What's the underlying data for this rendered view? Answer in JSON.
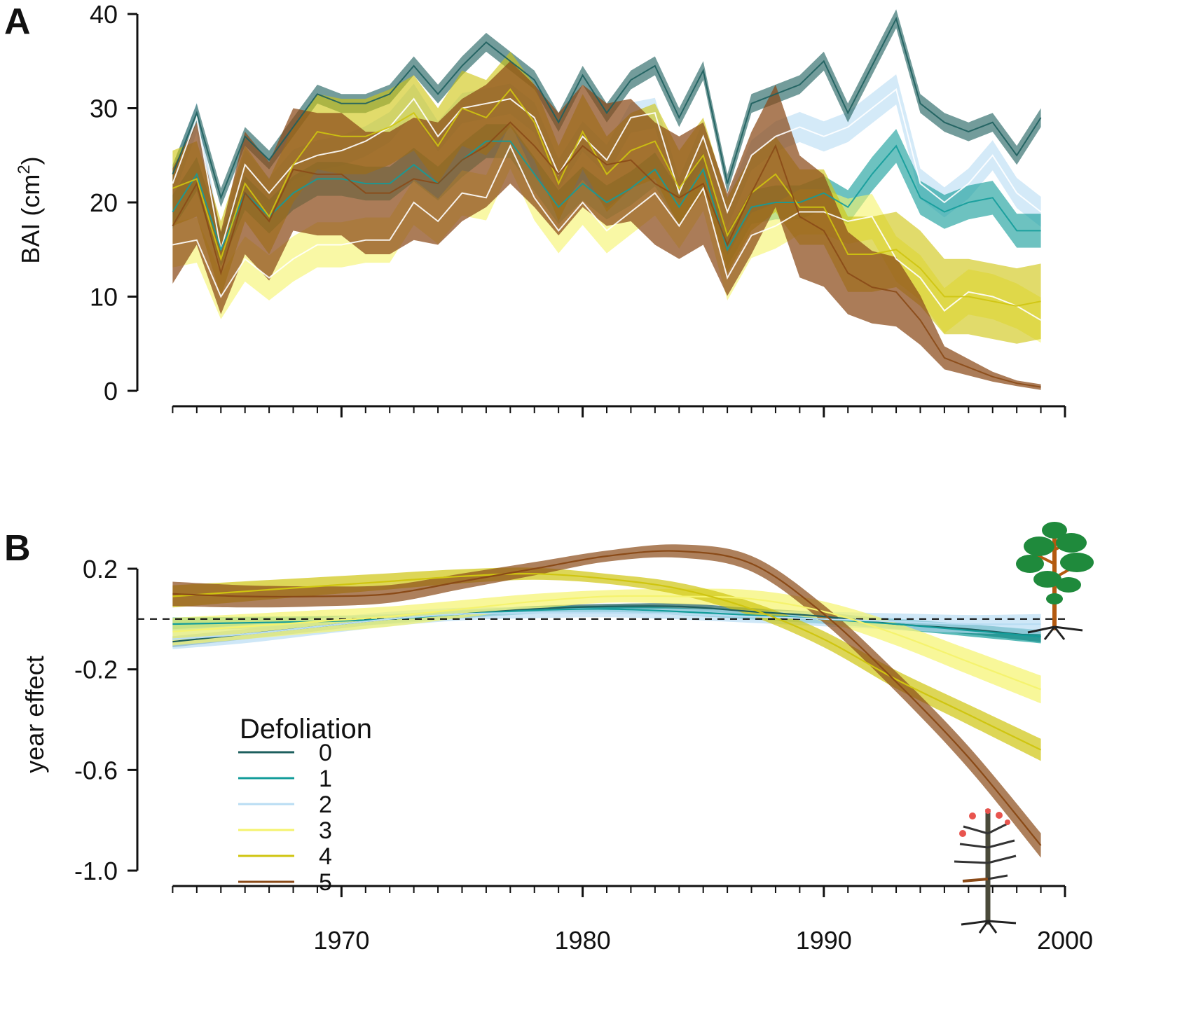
{
  "colors": {
    "0": "#1d5f5e",
    "1": "#139c9a",
    "2": "#b9ddf3",
    "3": "#f5f36e",
    "4": "#cfc510",
    "5": "#8a4a17",
    "axis": "#111111"
  },
  "chart_data": [
    {
      "id": "A",
      "type": "area",
      "panel_label": "A",
      "ylabel": "BAI (cm",
      "ylabel_sup": "2",
      "ylabel_close": ")",
      "ylim": [
        0,
        40
      ],
      "xlim": [
        1962,
        2000
      ],
      "yticks": [
        0,
        10,
        20,
        30,
        40
      ],
      "ytick_labels": [
        "0",
        "10",
        "20",
        "30",
        "40"
      ],
      "xticks_minor": [
        1963,
        1964,
        1965,
        1966,
        1967,
        1968,
        1969,
        1970,
        1971,
        1972,
        1973,
        1974,
        1975,
        1976,
        1977,
        1978,
        1979,
        1980,
        1981,
        1982,
        1983,
        1984,
        1985,
        1986,
        1987,
        1988,
        1989,
        1990,
        1991,
        1992,
        1993,
        1994,
        1995,
        1996,
        1997,
        1998,
        1999,
        2000
      ],
      "x": [
        1963,
        1964,
        1965,
        1966,
        1967,
        1968,
        1969,
        1970,
        1971,
        1972,
        1973,
        1974,
        1975,
        1976,
        1977,
        1978,
        1979,
        1980,
        1981,
        1982,
        1983,
        1984,
        1985,
        1986,
        1987,
        1988,
        1989,
        1990,
        1991,
        1992,
        1993,
        1994,
        1995,
        1996,
        1997,
        1998,
        1999
      ],
      "series": [
        {
          "name": "2",
          "values": [
            22,
            29,
            15,
            24,
            21,
            24,
            25,
            25.5,
            26.5,
            28,
            31,
            27,
            30,
            30.5,
            31,
            29,
            23,
            27,
            24.5,
            29,
            29.5,
            21,
            27,
            19,
            25,
            27,
            28,
            27,
            28,
            30,
            32,
            22,
            20,
            22,
            25,
            21,
            19
          ],
          "ci": 1.6
        },
        {
          "name": "0",
          "values": [
            23,
            29.5,
            20.5,
            27,
            24.5,
            28,
            31.5,
            30.5,
            30.5,
            31.5,
            34.5,
            31.5,
            34.5,
            37,
            35,
            33,
            28.5,
            33.5,
            29.5,
            33,
            34.5,
            29,
            34,
            22,
            30.5,
            31.5,
            32.5,
            35,
            29.5,
            34.5,
            39.5,
            30.5,
            28.5,
            27.5,
            28.5,
            25,
            29
          ],
          "ci": 1.0
        },
        {
          "name": "1",
          "values": [
            19,
            23,
            15,
            21,
            18.5,
            21,
            22.5,
            22.5,
            22,
            22,
            24,
            22,
            24.5,
            26.5,
            26.5,
            23,
            19.5,
            22,
            20,
            21.5,
            23.5,
            19.5,
            23.5,
            15,
            19.5,
            20,
            20,
            21,
            19.5,
            23,
            26,
            20.5,
            19,
            20,
            20.5,
            17,
            17
          ],
          "ci": 1.8
        },
        {
          "name": "3",
          "values": [
            15.5,
            16,
            10,
            14,
            12,
            14,
            15.5,
            15.5,
            16,
            16,
            20,
            18,
            21,
            20.5,
            26,
            20.5,
            17,
            20,
            17,
            19,
            21,
            17.5,
            21.5,
            12,
            16.5,
            17.5,
            19,
            19,
            18,
            18.5,
            14,
            12,
            8.5,
            10.5,
            10,
            9,
            7.5
          ],
          "ci": 2.4
        },
        {
          "name": "4",
          "values": [
            21.5,
            22.5,
            14,
            22,
            18.5,
            24,
            27.5,
            27,
            27,
            28,
            29.5,
            26,
            30,
            29,
            32,
            28.5,
            22,
            27.5,
            23,
            25.5,
            26.5,
            21.5,
            25,
            16.5,
            21,
            23,
            19.5,
            19.5,
            14.5,
            14.5,
            15,
            13,
            10,
            10,
            9.5,
            9,
            9.5
          ],
          "ci": 4.0
        },
        {
          "name": "5",
          "values": [
            17.5,
            22,
            12.5,
            21,
            18,
            23.5,
            23,
            23,
            21,
            21,
            22.5,
            22,
            24.5,
            26,
            28.5,
            26,
            23,
            26,
            24,
            24.5,
            22,
            20.5,
            22,
            15.5,
            21,
            26,
            18.5,
            17,
            12.5,
            11,
            10.5,
            7.5,
            3.5,
            2.5,
            1.5,
            0.8,
            0.4
          ],
          "ci_scale": 0.35,
          "ci_min": 0.3,
          "ci_max": 6.5
        }
      ]
    },
    {
      "id": "B",
      "type": "line",
      "panel_label": "B",
      "ylabel": "year effect",
      "ylim": [
        -1.0,
        0.2
      ],
      "xlim": [
        1962,
        2000
      ],
      "yticks": [
        0.2,
        -0.2,
        -0.6,
        -1.0
      ],
      "ytick_labels": [
        "0.2",
        "-0.2",
        "-0.6",
        "-1.0"
      ],
      "xticks_major": [
        1970,
        1980,
        1990,
        2000
      ],
      "xtick_labels": [
        "1970",
        "1980",
        "1990",
        "2000"
      ],
      "xticks_minor": [
        1963,
        1964,
        1965,
        1966,
        1967,
        1968,
        1969,
        1970,
        1971,
        1972,
        1973,
        1974,
        1975,
        1976,
        1977,
        1978,
        1979,
        1980,
        1981,
        1982,
        1983,
        1984,
        1985,
        1986,
        1987,
        1988,
        1989,
        1990,
        1991,
        1992,
        1993,
        1994,
        1995,
        1996,
        1997,
        1998,
        1999,
        2000
      ],
      "reference_line": 0.0,
      "x": [
        1963,
        1966,
        1969,
        1972,
        1975,
        1978,
        1981,
        1984,
        1987,
        1990,
        1993,
        1996,
        1999
      ],
      "series": [
        {
          "name": "0",
          "values": [
            -0.09,
            -0.06,
            -0.03,
            0.0,
            0.02,
            0.04,
            0.05,
            0.05,
            0.03,
            0.01,
            -0.02,
            -0.04,
            -0.07
          ],
          "ci": 0.01
        },
        {
          "name": "1",
          "values": [
            -0.02,
            -0.015,
            -0.01,
            0.0,
            0.02,
            0.035,
            0.04,
            0.03,
            0.015,
            0.0,
            -0.02,
            -0.045,
            -0.07
          ],
          "ci": 0.012
        },
        {
          "name": "2",
          "values": [
            -0.08,
            -0.06,
            -0.03,
            0.0,
            0.02,
            0.025,
            0.025,
            0.02,
            0.01,
            0.0,
            -0.01,
            -0.02,
            -0.02
          ],
          "ci": 0.018
        },
        {
          "name": "3",
          "values": [
            -0.05,
            -0.03,
            -0.01,
            0.01,
            0.04,
            0.07,
            0.09,
            0.09,
            0.08,
            0.03,
            -0.06,
            -0.17,
            -0.28
          ],
          "ci": 0.025
        },
        {
          "name": "4",
          "values": [
            0.09,
            0.11,
            0.13,
            0.15,
            0.17,
            0.18,
            0.16,
            0.12,
            0.04,
            -0.08,
            -0.24,
            -0.38,
            -0.52
          ],
          "ci": 0.02
        },
        {
          "name": "5",
          "values": [
            0.1,
            0.09,
            0.09,
            0.1,
            0.15,
            0.2,
            0.25,
            0.27,
            0.22,
            0.02,
            -0.25,
            -0.55,
            -0.9
          ],
          "ci": 0.022
        }
      ],
      "legend": {
        "title": "Defoliation",
        "position": "bottom-left",
        "entries": [
          "0",
          "1",
          "2",
          "3",
          "4",
          "5"
        ]
      }
    }
  ]
}
